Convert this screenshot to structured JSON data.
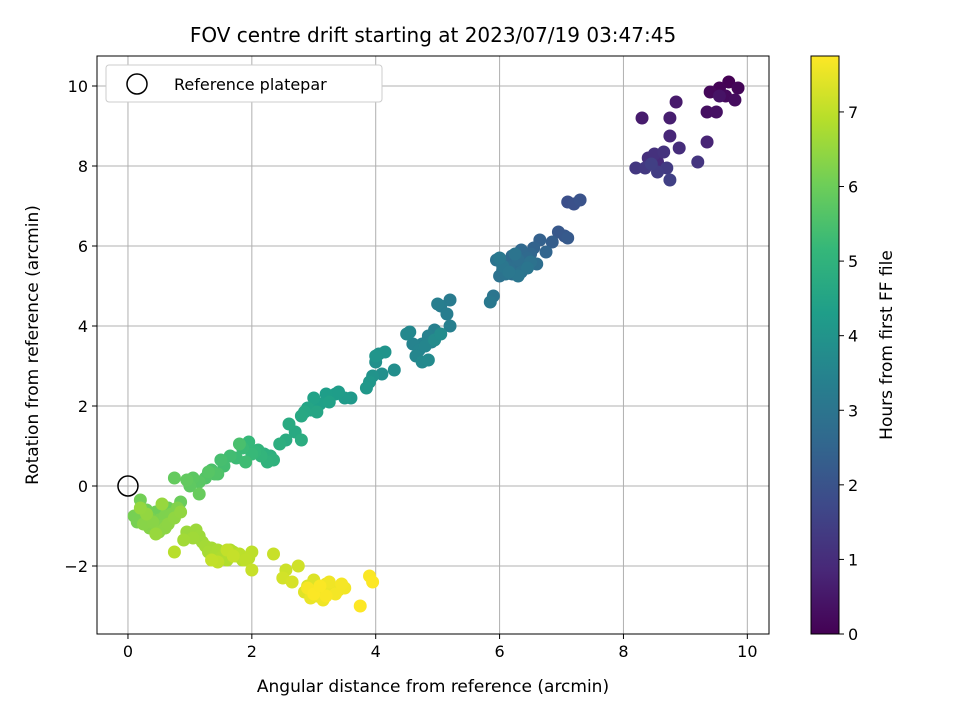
{
  "chart_data": {
    "type": "scatter",
    "title": "FOV centre drift starting at 2023/07/19 03:47:45",
    "xlabel": "Angular distance from reference (arcmin)",
    "ylabel": "Rotation from reference (arcmin)",
    "xlim": [
      -0.5,
      10.35
    ],
    "ylim": [
      -3.7,
      10.75
    ],
    "xticks": [
      0,
      2,
      4,
      6,
      8,
      10
    ],
    "yticks": [
      -2,
      0,
      2,
      4,
      6,
      8,
      10
    ],
    "grid": true,
    "legend": {
      "placement": "top-left",
      "entries": [
        "Reference platepar"
      ]
    },
    "reference_point": {
      "x": 0,
      "y": 0
    },
    "colorbar": {
      "label": "Hours from first FF file",
      "min": 0,
      "max": 7.75,
      "ticks": [
        0,
        1,
        2,
        3,
        4,
        5,
        6,
        7
      ],
      "colormap": [
        "#440154",
        "#482878",
        "#3e4989",
        "#31688e",
        "#26828e",
        "#1f9e89",
        "#35b779",
        "#6ece58",
        "#b5de2b",
        "#fde725"
      ]
    },
    "series": [
      {
        "x": [
          9.7,
          9.55,
          9.85,
          9.4,
          9.65,
          9.8,
          9.35,
          9.5,
          9.55,
          8.85,
          8.3,
          8.75,
          9.35,
          8.75,
          8.55,
          8.9,
          8.4,
          8.5,
          8.65,
          9.2,
          8.2,
          8.35,
          8.7,
          8.55,
          8.45,
          8.75,
          7.1,
          7.2,
          7.3
        ],
        "y": [
          10.1,
          9.95,
          9.95,
          9.85,
          9.75,
          9.65,
          9.35,
          9.35,
          9.75,
          9.6,
          9.2,
          9.2,
          8.6,
          8.75,
          8.1,
          8.45,
          8.2,
          8.3,
          8.35,
          8.1,
          7.95,
          7.95,
          7.95,
          7.85,
          8.05,
          7.65,
          7.1,
          7.05,
          7.15
        ],
        "hours": [
          0.0,
          0.05,
          0.1,
          0.15,
          0.2,
          0.25,
          0.3,
          0.35,
          0.4,
          0.55,
          0.6,
          0.65,
          0.8,
          0.85,
          0.95,
          1.0,
          1.05,
          1.1,
          1.15,
          1.2,
          1.25,
          1.3,
          1.35,
          1.4,
          1.45,
          1.5,
          1.9,
          1.95,
          2.0
        ]
      },
      {
        "x": [
          7.05,
          6.95,
          7.1,
          6.85,
          6.65,
          6.55,
          6.75,
          6.5,
          6.35,
          6.45,
          6.2,
          6.1,
          6.25,
          6.4,
          6.6,
          6.3,
          6.15,
          6.05,
          6.2,
          6.35,
          6.5,
          6.0,
          5.95,
          6.1,
          6.25,
          5.9,
          6.45,
          6.05,
          6.3,
          6.15,
          6.0,
          5.85
        ],
        "y": [
          6.25,
          6.35,
          6.2,
          6.1,
          6.15,
          5.95,
          5.85,
          5.8,
          5.9,
          5.7,
          5.75,
          5.6,
          5.55,
          5.5,
          5.55,
          5.65,
          5.45,
          5.4,
          5.3,
          5.35,
          5.6,
          5.25,
          5.65,
          5.3,
          5.8,
          4.75,
          5.45,
          5.5,
          5.25,
          5.35,
          5.7,
          4.6
        ],
        "hours": [
          2.1,
          2.15,
          2.2,
          2.3,
          2.4,
          2.45,
          2.5,
          2.55,
          2.6,
          2.65,
          2.7,
          2.72,
          2.74,
          2.76,
          2.78,
          2.8,
          2.82,
          2.84,
          2.86,
          2.88,
          2.9,
          2.92,
          2.94,
          2.96,
          2.98,
          3.0,
          3.02,
          3.04,
          3.06,
          3.08,
          3.1,
          3.12
        ]
      },
      {
        "x": [
          5.2,
          5.05,
          5.15,
          5.0,
          5.2,
          4.95,
          4.85,
          4.75,
          4.9,
          4.6,
          4.7,
          4.8,
          4.65,
          4.55,
          4.5,
          4.75,
          4.85,
          4.95,
          5.05,
          4.3,
          4.1,
          4.0,
          4.05,
          3.95,
          4.15,
          4.0,
          3.9,
          3.85,
          3.6,
          3.5,
          3.4,
          3.35,
          3.2,
          3.1,
          3.25,
          3.0,
          2.95,
          2.9,
          3.05,
          2.85,
          2.8,
          2.7,
          2.6
        ],
        "y": [
          4.65,
          4.5,
          4.3,
          4.55,
          4.0,
          3.9,
          3.75,
          3.55,
          3.6,
          3.55,
          3.4,
          3.5,
          3.25,
          3.85,
          3.8,
          3.1,
          3.15,
          3.65,
          3.8,
          2.9,
          2.8,
          3.1,
          3.3,
          2.75,
          3.35,
          3.25,
          2.6,
          2.45,
          2.2,
          2.2,
          2.35,
          2.3,
          2.3,
          2.05,
          2.1,
          2.2,
          1.9,
          1.95,
          1.85,
          1.85,
          1.75,
          1.35,
          1.55
        ],
        "hours": [
          3.2,
          3.25,
          3.28,
          3.31,
          3.34,
          3.37,
          3.4,
          3.43,
          3.46,
          3.49,
          3.52,
          3.55,
          3.58,
          3.61,
          3.64,
          3.67,
          3.7,
          3.73,
          3.76,
          3.8,
          3.84,
          3.88,
          3.92,
          3.96,
          4.0,
          4.04,
          4.08,
          4.12,
          4.16,
          4.2,
          4.24,
          4.28,
          4.32,
          4.36,
          4.4,
          4.44,
          4.48,
          4.52,
          4.56,
          4.6,
          4.64,
          4.68,
          4.72
        ]
      },
      {
        "x": [
          2.55,
          2.8,
          2.45,
          2.3,
          2.2,
          2.35,
          2.25,
          2.1,
          2.15,
          2.05,
          1.95,
          2.0,
          1.85,
          1.75,
          1.9,
          1.65,
          1.55,
          1.5,
          1.8,
          1.35,
          1.45,
          1.4,
          1.25,
          1.3,
          1.15,
          1.05,
          1.0,
          0.95,
          0.75,
          1.15
        ],
        "y": [
          1.15,
          1.15,
          1.05,
          0.75,
          0.8,
          0.65,
          0.6,
          0.9,
          0.75,
          0.85,
          1.1,
          0.8,
          0.95,
          0.7,
          0.6,
          0.75,
          0.5,
          0.65,
          1.05,
          0.4,
          0.3,
          0.3,
          0.2,
          0.35,
          0.1,
          0.2,
          0.0,
          0.15,
          0.2,
          -0.2
        ],
        "hours": [
          4.76,
          4.8,
          4.84,
          4.88,
          4.92,
          4.96,
          5.0,
          5.04,
          5.08,
          5.12,
          5.16,
          5.2,
          5.24,
          5.28,
          5.32,
          5.36,
          5.4,
          5.44,
          5.48,
          5.52,
          5.56,
          5.6,
          5.64,
          5.68,
          5.72,
          5.76,
          5.8,
          5.84,
          5.88,
          5.92
        ]
      },
      {
        "x": [
          0.85,
          0.55,
          0.65,
          0.45,
          0.3,
          0.2,
          0.25,
          0.1,
          0.15,
          0.35,
          0.5,
          0.4,
          0.6,
          0.7,
          0.8,
          0.55,
          0.45,
          0.35,
          0.25,
          0.4,
          0.5,
          0.6,
          0.65,
          0.75,
          0.85,
          0.3,
          0.2,
          0.55,
          0.45
        ],
        "y": [
          -0.4,
          -0.5,
          -0.55,
          -0.65,
          -0.6,
          -0.35,
          -0.75,
          -0.75,
          -0.9,
          -0.8,
          -0.85,
          -0.95,
          -0.75,
          -0.7,
          -0.55,
          -1.0,
          -1.1,
          -1.05,
          -0.95,
          -0.9,
          -1.15,
          -1.05,
          -0.95,
          -0.8,
          -0.65,
          -0.7,
          -0.55,
          -0.45,
          -1.2
        ],
        "hours": [
          5.96,
          6.0,
          6.02,
          6.04,
          6.06,
          6.08,
          6.1,
          6.12,
          6.14,
          6.16,
          6.18,
          6.2,
          6.22,
          6.24,
          6.26,
          6.28,
          6.3,
          6.32,
          6.34,
          6.36,
          6.38,
          6.4,
          6.42,
          6.44,
          6.46,
          6.48,
          6.5,
          6.52,
          6.54
        ]
      },
      {
        "x": [
          0.95,
          1.1,
          1.15,
          1.2,
          1.05,
          0.9,
          1.25,
          1.35,
          1.3,
          1.45,
          1.4,
          1.55,
          1.5,
          1.65,
          1.6,
          1.75,
          1.7,
          1.85,
          0.75,
          1.95,
          1.8,
          2.0,
          1.9,
          1.45,
          1.35,
          1.6,
          1.7,
          2.0
        ],
        "y": [
          -1.15,
          -1.1,
          -1.25,
          -1.4,
          -1.3,
          -1.35,
          -1.5,
          -1.55,
          -1.65,
          -1.6,
          -1.75,
          -1.7,
          -1.8,
          -1.6,
          -1.85,
          -1.75,
          -1.65,
          -1.85,
          -1.65,
          -1.8,
          -1.7,
          -1.65,
          -1.85,
          -1.9,
          -1.85,
          -1.6,
          -1.75,
          -2.1
        ],
        "hours": [
          6.56,
          6.58,
          6.6,
          6.62,
          6.64,
          6.66,
          6.68,
          6.7,
          6.72,
          6.74,
          6.76,
          6.78,
          6.8,
          6.82,
          6.84,
          6.86,
          6.88,
          6.9,
          6.92,
          6.94,
          6.96,
          6.98,
          7.0,
          7.02,
          7.04,
          7.06,
          7.08,
          7.1
        ]
      },
      {
        "x": [
          2.35,
          2.55,
          2.75,
          2.5,
          2.65,
          2.9,
          3.0,
          2.85,
          3.1,
          3.2,
          3.05,
          2.95,
          3.3,
          3.4,
          3.15,
          3.25,
          3.5,
          3.35,
          3.45,
          2.9,
          3.2,
          3.9,
          3.95,
          3.75,
          3.0,
          3.1
        ],
        "y": [
          -1.7,
          -2.1,
          -2.0,
          -2.3,
          -2.4,
          -2.5,
          -2.35,
          -2.65,
          -2.6,
          -2.45,
          -2.75,
          -2.8,
          -2.55,
          -2.6,
          -2.85,
          -2.4,
          -2.55,
          -2.7,
          -2.45,
          -2.55,
          -2.75,
          -2.25,
          -2.4,
          -3.0,
          -2.7,
          -2.5
        ],
        "hours": [
          7.12,
          7.16,
          7.2,
          7.24,
          7.28,
          7.32,
          7.36,
          7.4,
          7.44,
          7.48,
          7.5,
          7.52,
          7.54,
          7.56,
          7.58,
          7.6,
          7.62,
          7.64,
          7.66,
          7.68,
          7.7,
          7.72,
          7.74,
          7.75,
          7.73,
          7.71
        ]
      }
    ]
  }
}
